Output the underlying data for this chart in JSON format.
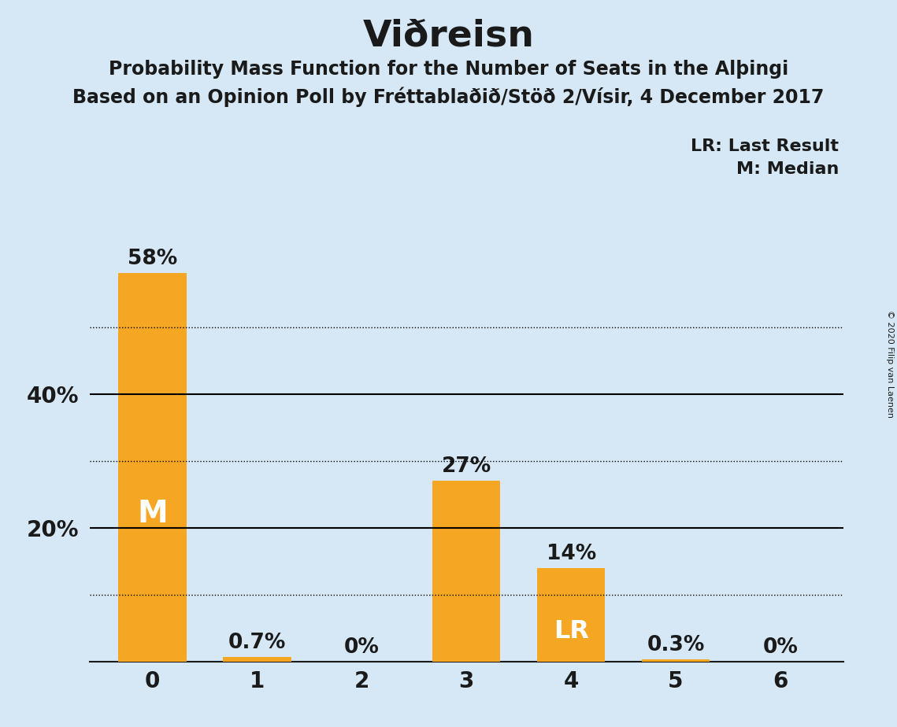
{
  "title": "Viðreisn",
  "subtitle1": "Probability Mass Function for the Number of Seats in the Alþingi",
  "subtitle2": "Based on an Opinion Poll by Fréttablaðið/Stöð 2/Vísir, 4 December 2017",
  "copyright": "© 2020 Filip van Laenen",
  "legend_lr": "LR: Last Result",
  "legend_m": "M: Median",
  "categories": [
    0,
    1,
    2,
    3,
    4,
    5,
    6
  ],
  "values": [
    58,
    0.7,
    0,
    27,
    14,
    0.3,
    0
  ],
  "bar_color": "#F5A623",
  "background_color": "#D6E8F5",
  "label_color_dark": "#1a1a1a",
  "label_color_white": "#FFFFFF",
  "bar_labels": [
    "58%",
    "0.7%",
    "0%",
    "27%",
    "14%",
    "0.3%",
    "0%"
  ],
  "median_bar_idx": 0,
  "lr_bar_idx": 4,
  "median_label": "M",
  "lr_label": "LR",
  "ylim_max": 63,
  "solid_lines": [
    20,
    40
  ],
  "dotted_lines": [
    10,
    30,
    50
  ],
  "yticks": [
    20,
    40
  ],
  "ytick_labels": [
    "20%",
    "40%"
  ],
  "title_fontsize": 34,
  "subtitle_fontsize": 17,
  "tick_fontsize": 20,
  "bar_label_fontsize": 19,
  "inbar_label_fontsize_M": 28,
  "inbar_label_fontsize_LR": 23,
  "legend_fontsize": 16,
  "copyright_fontsize": 8
}
